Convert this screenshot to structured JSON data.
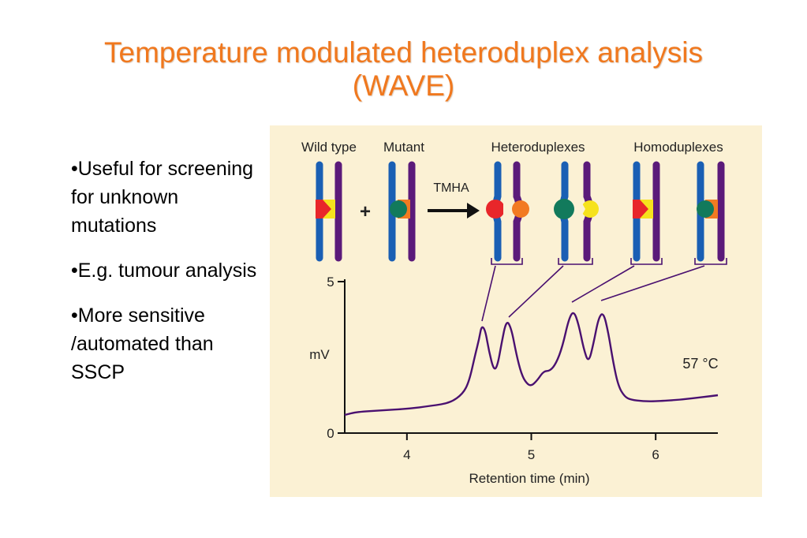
{
  "slide": {
    "title_line1": "Temperature modulated heteroduplex analysis",
    "title_line2": "(WAVE)",
    "bullets": [
      "•Useful for screening for unknown mutations",
      "•E.g. tumour analysis",
      "•More sensitive /automated than SSCP"
    ],
    "colors": {
      "title": "#f0781e",
      "panel": "#fbf1d4",
      "strand_blue": "#1a5fb4",
      "strand_purple": "#5b1a7a",
      "red": "#e8262a",
      "yellow": "#f6e21d",
      "green": "#127a5c",
      "orange": "#f27a22",
      "trace": "#4a1170"
    }
  },
  "diagram": {
    "labels": {
      "wild_type": "Wild type",
      "mutant": "Mutant",
      "heteroduplexes": "Heteroduplexes",
      "homoduplexes": "Homoduplexes",
      "plus": "+",
      "tmha": "TMHA"
    }
  },
  "chart_data": {
    "type": "line",
    "xlabel": "Retention time (min)",
    "ylabel": "mV",
    "annotation": "57 °C",
    "xlim": [
      3.5,
      6.5
    ],
    "ylim": [
      0,
      5
    ],
    "xticks": [
      4,
      5,
      6
    ],
    "yticks": [
      0,
      5
    ],
    "grid": false,
    "series": [
      {
        "x": [
          3.5,
          3.6,
          3.8,
          4.0,
          4.2,
          4.35,
          4.45,
          4.5,
          4.55,
          4.58,
          4.6,
          4.63,
          4.66,
          4.7,
          4.73,
          4.76,
          4.8,
          4.84,
          4.88,
          4.92,
          4.96,
          5.0,
          5.05,
          5.1,
          5.15,
          5.2,
          5.25,
          5.3,
          5.34,
          5.38,
          5.42,
          5.46,
          5.5,
          5.54,
          5.58,
          5.62,
          5.66,
          5.7,
          5.75,
          5.8,
          5.9,
          6.0,
          6.2,
          6.4,
          6.5
        ],
        "y": [
          0.6,
          0.7,
          0.75,
          0.8,
          0.9,
          1.0,
          1.3,
          1.7,
          2.6,
          3.1,
          3.55,
          3.4,
          2.7,
          2.05,
          2.25,
          2.95,
          3.75,
          3.45,
          2.6,
          1.95,
          1.65,
          1.55,
          1.75,
          2.05,
          2.05,
          2.3,
          2.85,
          3.75,
          4.05,
          3.6,
          2.8,
          2.3,
          2.95,
          3.8,
          4.0,
          3.3,
          2.3,
          1.55,
          1.2,
          1.1,
          1.05,
          1.05,
          1.1,
          1.2,
          1.25
        ]
      }
    ]
  }
}
